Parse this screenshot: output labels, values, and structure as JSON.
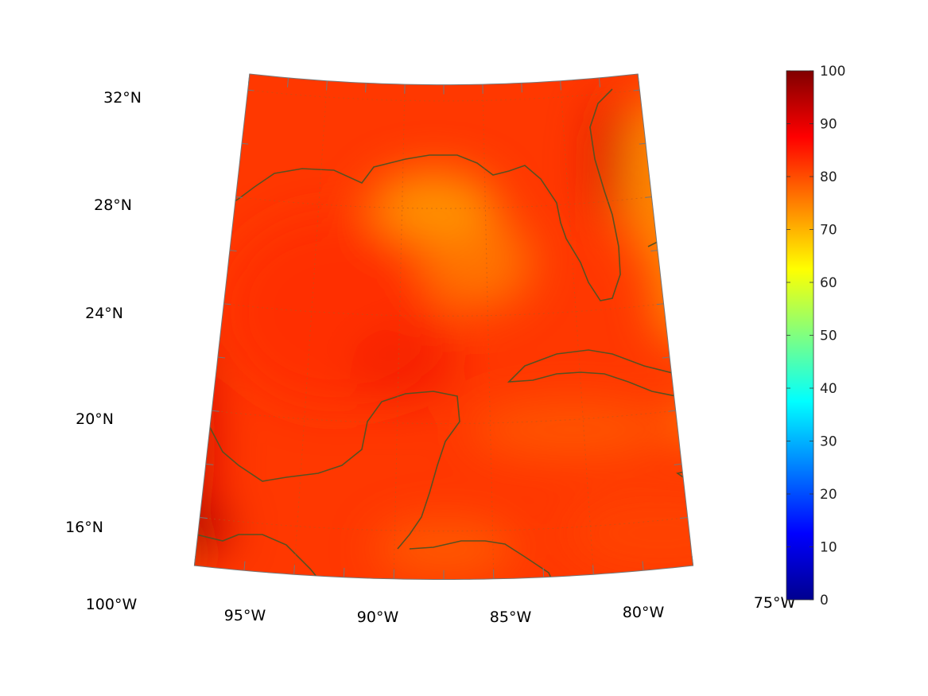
{
  "map": {
    "projection": "conic",
    "colormap": "jet",
    "coastline_color": "#5a5020",
    "grid": true,
    "longitude_labels": [
      "100°W",
      "95°W",
      "90°W",
      "85°W",
      "80°W",
      "75°W"
    ],
    "latitude_labels": [
      "32°N",
      "28°N",
      "24°N",
      "20°N",
      "16°N"
    ],
    "longitude_values": [
      -100,
      -95,
      -90,
      -85,
      -80,
      -75
    ],
    "latitude_values": [
      32,
      28,
      24,
      20,
      16
    ],
    "field_background_value": 82
  },
  "colorbar": {
    "min": 0,
    "max": 100,
    "tick_labels": [
      "100",
      "90",
      "80",
      "70",
      "60",
      "50",
      "40",
      "30",
      "20",
      "10",
      "0"
    ],
    "tick_values": [
      100,
      90,
      80,
      70,
      60,
      50,
      40,
      30,
      20,
      10,
      0
    ]
  }
}
